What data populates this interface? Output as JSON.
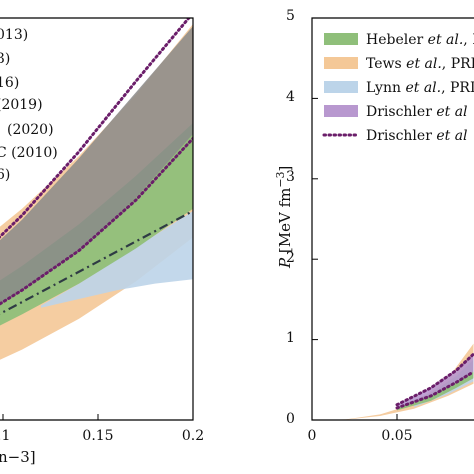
{
  "chart_data": [
    {
      "type": "area",
      "panel": "left",
      "xlim": [
        0.05,
        0.2
      ],
      "x_ticks": [
        "0.15",
        "0.2"
      ],
      "x_ticks_partial": [
        ".1"
      ],
      "xlabel_fragment": "n−3]",
      "legend_fragments": [
        "013)",
        "3)",
        "16)",
        "(2019)",
        "(2020)",
        "C (2010)",
        "6)"
      ],
      "series": [
        {
          "name": "orange",
          "x": [
            0.05,
            0.08,
            0.11,
            0.14,
            0.17,
            0.2
          ],
          "lower": [
            1.0,
            2.0,
            3.2,
            4.6,
            6.3,
            8.3
          ],
          "upper": [
            5.6,
            7.5,
            9.6,
            12.0,
            14.8,
            18.0
          ]
        },
        {
          "name": "blue",
          "x": [
            0.12,
            0.14,
            0.16,
            0.18,
            0.2
          ],
          "lower": [
            5.1,
            5.5,
            5.9,
            6.2,
            6.4
          ],
          "upper": [
            5.2,
            6.2,
            7.3,
            8.4,
            9.5
          ]
        },
        {
          "name": "green",
          "x": [
            0.05,
            0.08,
            0.11,
            0.14,
            0.17,
            0.2
          ],
          "lower": [
            2.4,
            3.5,
            4.8,
            6.2,
            7.8,
            9.6
          ],
          "upper": [
            3.8,
            5.3,
            7.0,
            8.9,
            11.1,
            13.5
          ]
        },
        {
          "name": "gray",
          "x": [
            0.05,
            0.08,
            0.11,
            0.14,
            0.17,
            0.2
          ],
          "lower": [
            3.1,
            4.3,
            5.9,
            7.7,
            10.1,
            13.0
          ],
          "upper": [
            4.6,
            6.7,
            9.1,
            11.9,
            14.9,
            17.9
          ]
        },
        {
          "name": "purple-dotted",
          "x": [
            0.05,
            0.08,
            0.11,
            0.14,
            0.17,
            0.2
          ],
          "lower": [
            3.0,
            4.3,
            5.9,
            7.7,
            10.0,
            12.8
          ],
          "upper": [
            4.7,
            6.8,
            9.3,
            12.2,
            15.4,
            18.5
          ]
        },
        {
          "name": "dash-dot",
          "x": [
            0.05,
            0.2
          ],
          "y": [
            2.6,
            9.5
          ]
        }
      ]
    },
    {
      "type": "area",
      "panel": "right",
      "xlim": [
        0,
        0.095
      ],
      "ylim": [
        0,
        5
      ],
      "x_ticks": [
        "0",
        "0.05"
      ],
      "y_ticks": [
        "0",
        "1",
        "2",
        "3",
        "4",
        "5"
      ],
      "ylabel_prefix": "P",
      "ylabel_unit": "[MeV fm",
      "ylabel_exp": "−3",
      "ylabel_close": "]",
      "legend": [
        {
          "name": "Hebeler et al., PRL",
          "a": "Hebeler ",
          "em": "et al.",
          "b": ", PRL",
          "color": "#8fbf7a"
        },
        {
          "name": "Tews et al., PRL",
          "a": "Tews ",
          "em": "et al.",
          "b": ", PRL",
          "color": "#f4c897"
        },
        {
          "name": "Lynn et al., PRL",
          "a": "Lynn ",
          "em": "et al.",
          "b": ", PRL",
          "color": "#bcd4e9"
        },
        {
          "name": "Drischler et al.",
          "a": "Drischler ",
          "em": "et al",
          "b": "",
          "color": "#b898cf"
        },
        {
          "name": "Drischler et al. (dotted)",
          "a": "Drischler ",
          "em": "et al",
          "b": "",
          "color": "#6b1e6a"
        }
      ],
      "series": [
        {
          "name": "orange",
          "x": [
            0.0,
            0.02,
            0.04,
            0.06,
            0.08,
            0.095
          ],
          "lower": [
            0,
            0.005,
            0.05,
            0.14,
            0.3,
            0.45
          ],
          "upper": [
            0,
            0.008,
            0.07,
            0.2,
            0.52,
            0.95
          ]
        },
        {
          "name": "blue",
          "x": [
            0.06,
            0.08,
            0.095
          ],
          "lower": [
            0.16,
            0.32,
            0.48
          ],
          "upper": [
            0.19,
            0.45,
            0.75
          ]
        },
        {
          "name": "green",
          "x": [
            0.05,
            0.07,
            0.085,
            0.095
          ],
          "lower": [
            0.12,
            0.24,
            0.4,
            0.52
          ],
          "upper": [
            0.16,
            0.34,
            0.55,
            0.75
          ]
        },
        {
          "name": "purple",
          "x": [
            0.05,
            0.07,
            0.085,
            0.095
          ],
          "lower": [
            0.15,
            0.3,
            0.47,
            0.6
          ],
          "upper": [
            0.19,
            0.4,
            0.62,
            0.82
          ]
        },
        {
          "name": "purple-dotted",
          "x": [
            0.05,
            0.07,
            0.085,
            0.095
          ],
          "lower": [
            0.15,
            0.3,
            0.47,
            0.6
          ],
          "upper": [
            0.19,
            0.4,
            0.62,
            0.82
          ]
        }
      ]
    }
  ]
}
